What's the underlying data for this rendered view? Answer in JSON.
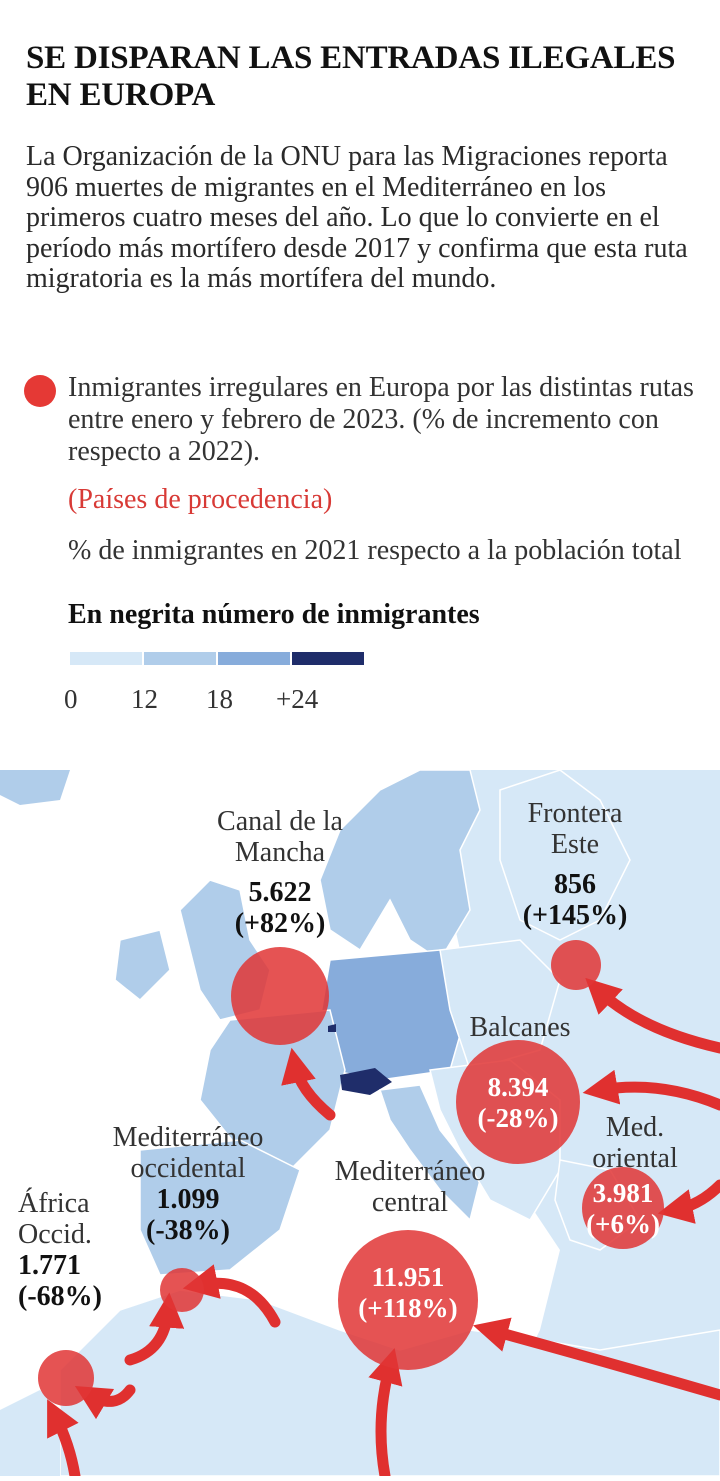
{
  "header": {
    "title": "SE DISPARAN LAS ENTRADAS ILEGALES EN EUROPA",
    "intro": "La Organización de la ONU para las Migraciones reporta 906 muertes de migrantes en el Mediterráneo en los primeros cuatro meses del año. Lo que lo convierte en el período más mortífero desde 2017 y confirma que esta ruta migratoria es la más mortífera del mundo."
  },
  "legend": {
    "circle_text": "Inmigrantes irregulares en Europa por las distintas rutas entre enero y febrero de 2023. (% de incremento con respecto a 2022).",
    "origin_text": "(Países de procedencia)",
    "percent_text": "% de inmigrantes en 2021 respecto a la población total",
    "bold_text": "En negrita número de inmigrantes",
    "scale_ticks": [
      "0",
      "12",
      "18",
      "+24"
    ],
    "scale_colors": [
      "#d6e8f7",
      "#b0cdea",
      "#87acdb",
      "#1f2d6a"
    ]
  },
  "colors": {
    "circle_fill": "#e03535",
    "arrow": "#e0302f",
    "sea": "#ffffff",
    "land_light": "#d6e8f7",
    "land_mid": "#b0cdea",
    "land_dark": "#87acdb",
    "land_darkest": "#1f2d6a"
  },
  "routes": [
    {
      "name": "Canal de la Mancha",
      "count": "5.622",
      "change": "(+82%)"
    },
    {
      "name": "Frontera Este",
      "count": "856",
      "change": "(+145%)"
    },
    {
      "name": "Balcanes",
      "count": "8.394",
      "change": "(-28%)"
    },
    {
      "name": "Med. oriental",
      "count": "3.981",
      "change": "(+6%)"
    },
    {
      "name": "Mediterráneo occidental",
      "count": "1.099",
      "change": "(-38%)"
    },
    {
      "name": "Mediterráneo central",
      "count": "11.951",
      "change": "(+118%)"
    },
    {
      "name": "África Occid.",
      "count": "1.771",
      "change": "(-68%)"
    }
  ]
}
